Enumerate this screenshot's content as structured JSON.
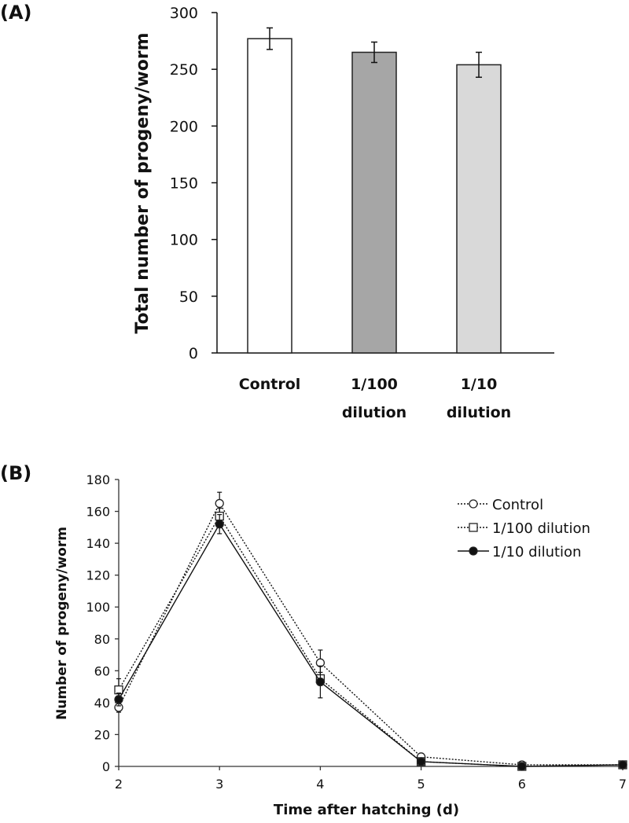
{
  "chart_data": [
    {
      "panel_label": "(A)",
      "type": "bar",
      "categories": [
        [
          "Control"
        ],
        [
          "1/100",
          "dilution"
        ],
        [
          "1/10",
          "dilution"
        ]
      ],
      "values": [
        277,
        265,
        254
      ],
      "errors": [
        9.5,
        9,
        11
      ],
      "bar_colors": [
        "#ffffff",
        "#a6a6a6",
        "#d9d9d9"
      ],
      "xlabel": "",
      "ylabel": "Total number of progeny/worm",
      "ylim": [
        0,
        300
      ],
      "yticks": [
        0,
        50,
        100,
        150,
        200,
        250,
        300
      ],
      "grid": false
    },
    {
      "panel_label": "(B)",
      "type": "line",
      "x": [
        2,
        3,
        4,
        5,
        6,
        7
      ],
      "series": [
        {
          "name": "Control",
          "values": [
            37,
            165,
            65,
            6,
            1,
            1
          ],
          "errors": [
            3,
            7,
            8,
            1,
            0.5,
            0.5
          ],
          "marker": "open-circle",
          "line": "dotted"
        },
        {
          "name": "1/100 dilution",
          "values": [
            48,
            157,
            55,
            3,
            0,
            1
          ],
          "errors": [
            7,
            5,
            4,
            1,
            0.5,
            0.5
          ],
          "marker": "open-square",
          "line": "dotted"
        },
        {
          "name": "1/10 dilution",
          "values": [
            42,
            152,
            53,
            3,
            0,
            1
          ],
          "errors": [
            4,
            6,
            10,
            1,
            0.5,
            0.5
          ],
          "marker": "filled-circle",
          "line": "solid"
        }
      ],
      "xlabel": "Time after hatching (d)",
      "ylabel": "Number of progeny/worm",
      "xlim": [
        2,
        7
      ],
      "ylim": [
        0,
        180
      ],
      "xticks": [
        2,
        3,
        4,
        5,
        6,
        7
      ],
      "yticks": [
        0,
        20,
        40,
        60,
        80,
        100,
        120,
        140,
        160,
        180
      ],
      "legend_position": "top-right",
      "grid": false
    }
  ]
}
